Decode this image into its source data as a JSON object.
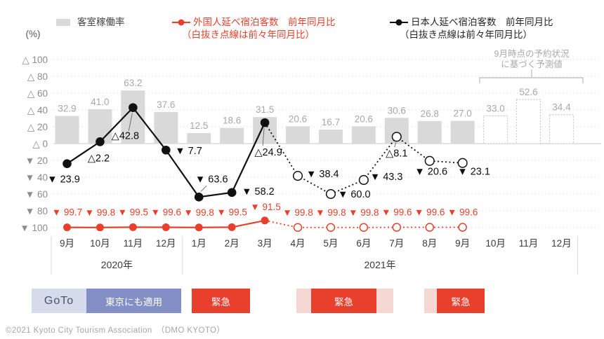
{
  "legend": {
    "occupancy": {
      "label": "客室稼働率"
    },
    "foreign": {
      "label": "外国人延べ宿泊客数　前年同月比",
      "sub": "（白抜き点線は前々年同月比）"
    },
    "japanese": {
      "label": "日本人延べ宿泊客数　前年同月比",
      "sub": "（白抜き点線は前々年同月比）"
    }
  },
  "axis_unit": "(%)",
  "chart_data": {
    "type": "combo-bar-line",
    "categories": [
      "9月",
      "10月",
      "11月",
      "12月",
      "1月",
      "2月",
      "3月",
      "4月",
      "5月",
      "6月",
      "7月",
      "8月",
      "9月",
      "10月",
      "11月",
      "12月"
    ],
    "year_groups": [
      {
        "label": "2020年",
        "from": 0,
        "to": 3
      },
      {
        "label": "2021年",
        "from": 4,
        "to": 15
      }
    ],
    "y_axis": {
      "values": [
        100,
        80,
        60,
        40,
        20,
        0,
        -20,
        -40,
        -60,
        -80,
        -100
      ],
      "ticks": [
        "△ 100",
        "△ 80",
        "△ 60",
        "△ 40",
        "△ 20",
        "△ 0",
        "▼ 20",
        "▼ 40",
        "▼ 60",
        "▼ 80",
        "▼ 100"
      ],
      "grid": true
    },
    "bars": {
      "name": "客室稼働率",
      "values": [
        32.9,
        41.0,
        63.2,
        37.6,
        12.5,
        18.6,
        31.5,
        20.6,
        16.7,
        20.6,
        30.6,
        26.8,
        27.0,
        33.0,
        52.6,
        34.4
      ],
      "labels": [
        "32.9",
        "41.0",
        "63.2",
        "37.6",
        "12.5",
        "18.6",
        "31.5",
        "20.6",
        "16.7",
        "20.6",
        "30.6",
        "26.8",
        "27.0",
        "33.0",
        "52.6",
        "34.4"
      ],
      "forecast_from_index": 13
    },
    "series": [
      {
        "name": "外国人延べ宿泊客数 前年同月比",
        "color": "#E8402D",
        "values": [
          -99.7,
          -99.8,
          -99.5,
          -99.6,
          -99.8,
          -99.5,
          -91.5,
          -99.8,
          -99.8,
          -99.8,
          -99.6,
          -99.6,
          -99.6
        ],
        "labels": [
          "▼ 99.7",
          "▼ 99.8",
          "▼ 99.5",
          "▼ 99.6",
          "▼ 99.8",
          "▼ 99.5",
          "▼ 91.5",
          "▼ 99.8",
          "▼ 99.8",
          "▼ 99.8",
          "▼ 99.6",
          "▼ 99.6",
          "▼ 99.6"
        ],
        "solid_until_index": 6,
        "open_markers_after_index": 6
      },
      {
        "name": "日本人延べ宿泊客数 前年同月比",
        "color": "#111111",
        "values": [
          -23.9,
          2.2,
          42.8,
          -7.7,
          -63.6,
          -58.2,
          24.9,
          -38.4,
          -60.0,
          -43.3,
          8.1,
          -20.6,
          -23.1
        ],
        "labels": [
          "▼ 23.9",
          "△2.2",
          "△42.8",
          "▼ 7.7",
          "▼ 63.6",
          "▼ 58.2",
          "△24.9",
          "▼ 38.4",
          "▼ 60.0",
          "▼ 43.3",
          "△8.1",
          "▼ 20.6",
          "▼ 23.1"
        ],
        "solid_until_index": 6,
        "open_markers_after_index": 6
      }
    ],
    "annotation": {
      "line1": "9月時点の予約状況",
      "line2": "に基づく予測値",
      "covers": [
        "10月",
        "11月",
        "12月"
      ]
    }
  },
  "timeline_bands": [
    {
      "label": "GoTo",
      "type": "goto"
    },
    {
      "label": "東京にも適用",
      "type": "tokyo"
    },
    {
      "label": "緊急",
      "type": "emergency"
    },
    {
      "label": "",
      "type": "quasi"
    },
    {
      "label": "緊急",
      "type": "emergency"
    },
    {
      "label": "",
      "type": "quasi"
    },
    {
      "label": "",
      "type": "quasi"
    },
    {
      "label": "緊急",
      "type": "emergency"
    }
  ],
  "colors": {
    "bar": "#D9D9D9",
    "bar_label": "#A8A8A8",
    "forecast_bar_border": "#C9C9C9",
    "red": "#E8402D",
    "black": "#111111",
    "grid": "#E3E3E3",
    "zero_line": "#D4D4D4",
    "axis_text": "#8C8C8C",
    "category_text": "#3A3A3A",
    "annotation": "#A9A9A9",
    "goto_bg": "#D6DBEB",
    "goto_text": "#44546A",
    "tokyo_bg": "#8490C5",
    "emergency_bg": "#E8402D",
    "quasi_bg": "#F5D8D3"
  },
  "footer": "©2021 Kyoto City Tourism Association　（DMO KYOTO）"
}
